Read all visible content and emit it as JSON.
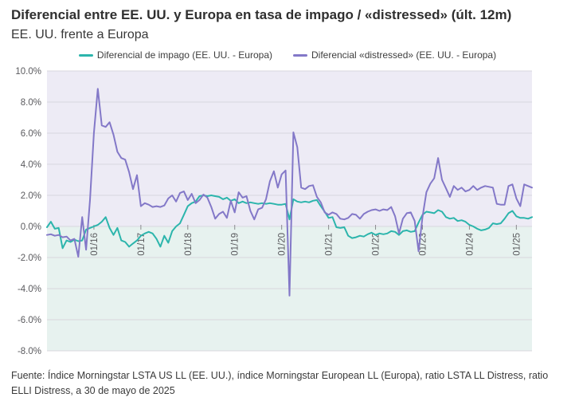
{
  "page": {
    "title": "Diferencial entre EE. UU. y Europa en tasa de impago / «distressed» (últ. 12m)",
    "subtitle": "EE. UU. frente a Europa"
  },
  "legend": {
    "items": [
      {
        "label": "Diferencial de impago (EE. UU. - Europa)",
        "color": "#2cb5ac"
      },
      {
        "label": "Diferencial «distressed» (EE. UU. - Europa)",
        "color": "#8378c8"
      }
    ]
  },
  "footer": {
    "text": "Fuente: Índice Morningstar LSTA US LL (EE. UU.), índice Morningstar European LL (Europa), ratio LSTA LL Distress, ratio ELLI Distress, a 30 de mayo de 2025"
  },
  "chart_data": {
    "type": "line",
    "title": "Diferencial entre EE. UU. y Europa en tasa de impago / «distressed» (últ. 12m)",
    "subtitle": "EE. UU. frente a Europa",
    "unit": "%",
    "x_frequency": "monthly",
    "x_start": "01/15",
    "x_end": "05/25",
    "x_tick_labels": [
      "01/16",
      "01/17",
      "01/18",
      "01/19",
      "01/20",
      "01/21",
      "01/22",
      "01/23",
      "01/24",
      "01/25"
    ],
    "x_tick_indices": [
      12,
      24,
      36,
      48,
      60,
      72,
      84,
      96,
      108,
      120
    ],
    "y_ticks": [
      10,
      8,
      6,
      4,
      2,
      0,
      -2,
      -4,
      -6,
      -8
    ],
    "ylim": [
      -8,
      10
    ],
    "grid": "horizontal",
    "legend_position": "top",
    "plot_bg_above_zero": "#edebf5",
    "plot_bg_below_zero": "#e7f2ef",
    "gridline_color": "#d8d7de",
    "tick_color": "#8a8a8e",
    "series": [
      {
        "name": "Diferencial de impago (EE. UU. - Europa)",
        "color": "#2cb5ac",
        "values": [
          -0.05,
          0.3,
          -0.15,
          -0.1,
          -1.4,
          -0.9,
          -1.0,
          -0.85,
          -0.95,
          -0.9,
          -0.2,
          -0.1,
          0.0,
          0.1,
          0.3,
          0.6,
          -0.1,
          -0.55,
          -0.1,
          -0.9,
          -1.0,
          -1.3,
          -1.1,
          -0.9,
          -0.6,
          -0.45,
          -0.35,
          -0.45,
          -0.8,
          -1.3,
          -0.6,
          -1.05,
          -0.3,
          0.0,
          0.2,
          0.75,
          1.3,
          1.5,
          1.6,
          1.95,
          2.0,
          1.95,
          2.0,
          1.95,
          1.9,
          1.75,
          1.85,
          1.65,
          1.75,
          1.5,
          1.6,
          1.5,
          1.55,
          1.5,
          1.45,
          1.5,
          1.45,
          1.5,
          1.45,
          1.4,
          1.4,
          1.45,
          0.45,
          1.75,
          1.6,
          1.55,
          1.6,
          1.55,
          1.65,
          1.7,
          1.3,
          0.95,
          0.55,
          0.6,
          -0.05,
          -0.1,
          -0.05,
          -0.6,
          -0.75,
          -0.7,
          -0.6,
          -0.65,
          -0.5,
          -0.4,
          -0.55,
          -0.45,
          -0.5,
          -0.45,
          -0.3,
          -0.35,
          -0.55,
          -0.3,
          -0.25,
          -0.35,
          -0.3,
          0.25,
          0.75,
          0.95,
          0.9,
          0.85,
          1.05,
          0.95,
          0.6,
          0.5,
          0.55,
          0.35,
          0.4,
          0.3,
          0.1,
          0.0,
          -0.15,
          -0.25,
          -0.2,
          -0.1,
          0.2,
          0.15,
          0.2,
          0.5,
          0.85,
          1.0,
          0.65,
          0.55,
          0.55,
          0.5,
          0.6
        ]
      },
      {
        "name": "Diferencial «distressed» (EE. UU. - Europa)",
        "color": "#8378c8",
        "values": [
          -0.55,
          -0.5,
          -0.6,
          -0.55,
          -0.7,
          -0.65,
          -0.9,
          -0.8,
          -1.95,
          0.6,
          -1.5,
          1.7,
          6.0,
          8.85,
          6.5,
          6.4,
          6.7,
          5.9,
          4.8,
          4.4,
          4.3,
          3.5,
          2.4,
          3.3,
          1.3,
          1.5,
          1.4,
          1.25,
          1.3,
          1.25,
          1.35,
          1.8,
          2.0,
          1.6,
          2.15,
          2.25,
          1.7,
          2.1,
          1.5,
          1.7,
          2.05,
          1.85,
          1.25,
          0.5,
          0.8,
          0.95,
          0.55,
          1.65,
          0.9,
          2.2,
          1.85,
          1.95,
          1.0,
          0.45,
          1.1,
          1.2,
          1.75,
          2.9,
          3.55,
          2.5,
          3.35,
          3.6,
          -4.45,
          6.05,
          5.1,
          2.5,
          2.4,
          2.6,
          2.65,
          1.9,
          1.55,
          0.9,
          0.75,
          0.9,
          0.8,
          0.5,
          0.45,
          0.55,
          0.8,
          0.75,
          0.5,
          0.8,
          0.95,
          1.05,
          1.1,
          1.0,
          1.1,
          1.05,
          1.25,
          0.65,
          -0.45,
          0.5,
          0.85,
          0.9,
          0.35,
          -1.6,
          0.6,
          2.2,
          2.75,
          3.1,
          4.4,
          3.0,
          2.45,
          1.9,
          2.6,
          2.35,
          2.5,
          2.25,
          2.35,
          2.6,
          2.35,
          2.5,
          2.6,
          2.55,
          2.5,
          1.45,
          1.4,
          1.4,
          2.6,
          2.7,
          1.8,
          1.3,
          2.7,
          2.6,
          2.5
        ]
      }
    ]
  }
}
